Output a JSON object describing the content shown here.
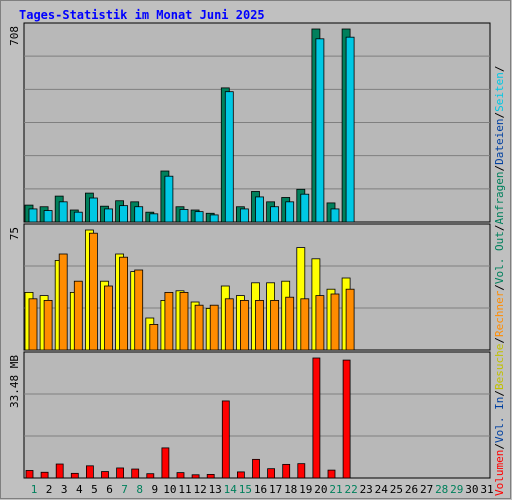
{
  "chart_data": {
    "type": "bar",
    "title": "Tages-Statistik im Monat Juni 2025",
    "days": [
      "1",
      "2",
      "3",
      "4",
      "5",
      "6",
      "7",
      "8",
      "9",
      "10",
      "11",
      "12",
      "13",
      "14",
      "15",
      "16",
      "17",
      "18",
      "19",
      "20",
      "21",
      "22",
      "23",
      "24",
      "25",
      "26",
      "27",
      "28",
      "29",
      "30",
      "31"
    ],
    "weekend_days": [
      1,
      7,
      8,
      14,
      15,
      21,
      22,
      28,
      29
    ],
    "panels": [
      {
        "name": "top",
        "y_max_label": "708",
        "y_max": 708,
        "series": [
          {
            "name": "Anfragen",
            "color": "#00805c",
            "values": [
              62,
              56,
              95,
              44,
              106,
              58,
              78,
              74,
              36,
              187,
              56,
              44,
              32,
              492,
              56,
              112,
              74,
              90,
              120,
              708,
              70,
              708
            ]
          },
          {
            "name": "Dateien",
            "color": "#00c8e4",
            "values": [
              48,
              42,
              74,
              36,
              88,
              48,
              60,
              56,
              30,
              168,
              46,
              38,
              26,
              478,
              48,
              92,
              56,
              74,
              102,
              672,
              48,
              678
            ]
          },
          {
            "name": "Seiten",
            "color": "#00c8e4",
            "values": [
              0,
              0,
              0,
              0,
              0,
              0,
              0,
              0,
              0,
              0,
              0,
              0,
              0,
              0,
              0,
              0,
              0,
              0,
              0,
              0,
              0,
              0
            ]
          }
        ],
        "legend": [
          {
            "text": "Anfragen",
            "color": "#00805c"
          },
          {
            "text": "/",
            "color": "#000000"
          },
          {
            "text": "Dateien",
            "color": "#0040a0"
          },
          {
            "text": "/",
            "color": "#000000"
          },
          {
            "text": "Seiten",
            "color": "#00c8e4"
          },
          {
            "text": "/",
            "color": "#000000"
          }
        ]
      },
      {
        "name": "middle",
        "y_max_label": "75",
        "y_max": 75,
        "series": [
          {
            "name": "Besuche",
            "color": "#ffff00",
            "values": [
              36,
              34,
              56,
              36,
              75,
              43,
              60,
              49,
              20,
              31,
              37,
              30,
              26,
              40,
              34,
              42,
              42,
              43,
              64,
              57,
              38,
              45
            ]
          },
          {
            "name": "Rechner",
            "color": "#ff8c00",
            "values": [
              32,
              31,
              60,
              43,
              73,
              40,
              58,
              50,
              16,
              36,
              36,
              28,
              28,
              32,
              31,
              31,
              31,
              33,
              32,
              34,
              35,
              38
            ]
          }
        ],
        "legend": [
          {
            "text": "Besuche",
            "color": "#c0c000"
          },
          {
            "text": "/",
            "color": "#000000"
          },
          {
            "text": "Rechner",
            "color": "#ff8c00"
          },
          {
            "text": "/",
            "color": "#000000"
          },
          {
            "text": "Vol. Out",
            "color": "#00805c"
          },
          {
            "text": "/",
            "color": "#000000"
          }
        ]
      },
      {
        "name": "bottom",
        "y_max_label": "33.48 MB",
        "y_max": 33.48,
        "unit": "MB",
        "series": [
          {
            "name": "Volumen",
            "color": "#ff0000",
            "values": [
              2.1,
              1.6,
              3.9,
              1.3,
              3.4,
              1.8,
              2.8,
              2.5,
              1.2,
              8.4,
              1.5,
              0.9,
              1.0,
              21.5,
              1.7,
              5.2,
              2.6,
              3.8,
              4.0,
              33.48,
              2.2,
              32.9
            ]
          }
        ],
        "legend": [
          {
            "text": "Volumen",
            "color": "#ff0000"
          },
          {
            "text": "/",
            "color": "#000000"
          },
          {
            "text": "Vol. In",
            "color": "#0040a0"
          },
          {
            "text": "/",
            "color": "#000000"
          }
        ]
      }
    ]
  },
  "colors": {
    "title": "#0000ff",
    "background": "#c0c0c0",
    "plot": "#b8b8b8",
    "grid": "#7f7f7f",
    "weekday": "#000000",
    "weekend": "#00805c"
  }
}
